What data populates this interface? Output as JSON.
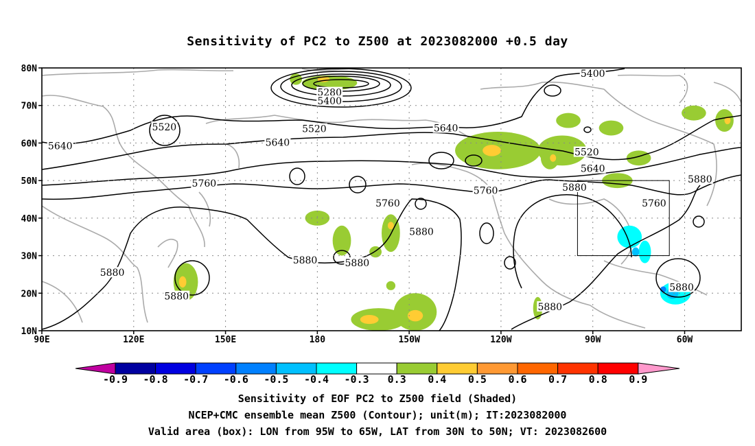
{
  "title": "Sensitivity of PC2 to Z500 at 2023082000 +0.5 day",
  "axes": {
    "lat_labels": [
      "80N",
      "70N",
      "60N",
      "50N",
      "40N",
      "30N",
      "20N",
      "10N"
    ],
    "lon_labels": [
      "90E",
      "120E",
      "150E",
      "180",
      "150W",
      "120W",
      "90W",
      "60W"
    ]
  },
  "contour_labels": [
    {
      "text": "5280",
      "lon": 184,
      "lat": 73.5
    },
    {
      "text": "5400",
      "lon": 184,
      "lat": 71.2
    },
    {
      "text": "5400",
      "lon": 270,
      "lat": 78.5
    },
    {
      "text": "5520",
      "lon": 130,
      "lat": 64.3
    },
    {
      "text": "5520",
      "lon": 179,
      "lat": 63.8
    },
    {
      "text": "5520",
      "lon": 268,
      "lat": 57.6
    },
    {
      "text": "5640",
      "lon": 96,
      "lat": 59.3
    },
    {
      "text": "5640",
      "lon": 167,
      "lat": 60.2
    },
    {
      "text": "5640",
      "lon": 222,
      "lat": 64
    },
    {
      "text": "5640",
      "lon": 270,
      "lat": 53.2
    },
    {
      "text": "5760",
      "lon": 143,
      "lat": 49.3
    },
    {
      "text": "5760",
      "lon": 203,
      "lat": 44
    },
    {
      "text": "5760",
      "lon": 235,
      "lat": 47.4
    },
    {
      "text": "5760",
      "lon": 290,
      "lat": 44
    },
    {
      "text": "5880",
      "lon": 264,
      "lat": 48.2
    },
    {
      "text": "5880",
      "lon": 305,
      "lat": 50.4
    },
    {
      "text": "5880",
      "lon": 214,
      "lat": 36.4
    },
    {
      "text": "5880",
      "lon": 176,
      "lat": 28.8
    },
    {
      "text": "5880",
      "lon": 193,
      "lat": 28.1
    },
    {
      "text": "5880",
      "lon": 113,
      "lat": 25.5
    },
    {
      "text": "5880",
      "lon": 134,
      "lat": 19.2
    },
    {
      "text": "5880",
      "lon": 299,
      "lat": 21.6
    },
    {
      "text": "5880",
      "lon": 256,
      "lat": 16.4
    }
  ],
  "colorbar": {
    "labels": [
      "-0.9",
      "-0.8",
      "-0.7",
      "-0.6",
      "-0.5",
      "-0.4",
      "-0.3",
      "0.3",
      "0.4",
      "0.5",
      "0.6",
      "0.7",
      "0.8",
      "0.9"
    ],
    "colors": [
      "#0000a0",
      "#0000e0",
      "#0040ff",
      "#0080ff",
      "#00c0ff",
      "#00ffff",
      "#ffffff",
      "#99cc33",
      "#ffcc33",
      "#ff9933",
      "#ff6600",
      "#ff3300",
      "#ff0000"
    ],
    "left_tip_color": "#c000a0",
    "right_tip_color": "#ff99cc"
  },
  "footer": [
    "Sensitivity of EOF PC2 to Z500 field (Shaded)",
    "NCEP+CMC ensemble mean Z500 (Contour); unit(m); IT:2023082000",
    "Valid area (box): LON from 95W to 65W, LAT from 30N to 50N; VT: 2023082600"
  ],
  "valid_box": {
    "lon_min": 265,
    "lon_max": 295,
    "lat_min": 30,
    "lat_max": 50
  },
  "shading": [
    {
      "lon": 200,
      "lat": 13,
      "rx": 9,
      "ry": 3,
      "value": 0.35
    },
    {
      "lon": 197,
      "lat": 13,
      "rx": 3,
      "ry": 1.2,
      "value": 0.45
    },
    {
      "lon": 212,
      "lat": 15,
      "rx": 7,
      "ry": 5,
      "value": 0.35
    },
    {
      "lon": 212,
      "lat": 14,
      "rx": 2.5,
      "ry": 1.5,
      "value": 0.45
    },
    {
      "lon": 204,
      "lat": 36,
      "rx": 3,
      "ry": 5,
      "value": 0.35
    },
    {
      "lon": 204,
      "lat": 38,
      "rx": 1,
      "ry": 1,
      "value": 0.45
    },
    {
      "lon": 180,
      "lat": 40,
      "rx": 4,
      "ry": 2,
      "value": 0.35
    },
    {
      "lon": 188,
      "lat": 34,
      "rx": 3,
      "ry": 4,
      "value": 0.35
    },
    {
      "lon": 199,
      "lat": 31,
      "rx": 2,
      "ry": 1.5,
      "value": 0.35
    },
    {
      "lon": 137,
      "lat": 23,
      "rx": 4,
      "ry": 5,
      "value": 0.35
    },
    {
      "lon": 136,
      "lat": 23,
      "rx": 1.2,
      "ry": 1.5,
      "value": 0.45
    },
    {
      "lon": 184,
      "lat": 76,
      "rx": 9,
      "ry": 2,
      "value": 0.35
    },
    {
      "lon": 182,
      "lat": 77,
      "rx": 2,
      "ry": 0.8,
      "value": 0.45
    },
    {
      "lon": 173,
      "lat": 77,
      "rx": 2,
      "ry": 1.5,
      "value": 0.35
    },
    {
      "lon": 239,
      "lat": 58,
      "rx": 14,
      "ry": 5,
      "value": 0.35
    },
    {
      "lon": 237,
      "lat": 58,
      "rx": 3,
      "ry": 1.5,
      "value": 0.45
    },
    {
      "lon": 260,
      "lat": 58,
      "rx": 8,
      "ry": 4,
      "value": 0.35
    },
    {
      "lon": 262,
      "lat": 66,
      "rx": 4,
      "ry": 2,
      "value": 0.35
    },
    {
      "lon": 256,
      "lat": 56,
      "rx": 3,
      "ry": 3,
      "value": 0.35
    },
    {
      "lon": 257,
      "lat": 56,
      "rx": 1,
      "ry": 1,
      "value": 0.45
    },
    {
      "lon": 278,
      "lat": 50,
      "rx": 5,
      "ry": 2,
      "value": 0.35
    },
    {
      "lon": 276,
      "lat": 64,
      "rx": 4,
      "ry": 2,
      "value": 0.35
    },
    {
      "lon": 285,
      "lat": 56,
      "rx": 4,
      "ry": 2,
      "value": 0.35
    },
    {
      "lon": 303,
      "lat": 68,
      "rx": 4,
      "ry": 2,
      "value": 0.35
    },
    {
      "lon": 313,
      "lat": 66,
      "rx": 3,
      "ry": 3,
      "value": 0.35
    },
    {
      "lon": 314,
      "lat": 66,
      "rx": 1,
      "ry": 1,
      "value": 0.45
    },
    {
      "lon": 282,
      "lat": 35,
      "rx": 4,
      "ry": 3,
      "value": -0.4
    },
    {
      "lon": 287,
      "lat": 31,
      "rx": 2,
      "ry": 3,
      "value": -0.4
    },
    {
      "lon": 284,
      "lat": 31,
      "rx": 1.2,
      "ry": 1.2,
      "value": -0.5
    },
    {
      "lon": 297,
      "lat": 20,
      "rx": 5,
      "ry": 3,
      "value": -0.4
    },
    {
      "lon": 296,
      "lat": 20,
      "rx": 2,
      "ry": 1.5,
      "value": -0.5
    },
    {
      "lon": 293,
      "lat": 21,
      "rx": 1,
      "ry": 0.8,
      "value": -0.6
    },
    {
      "lon": 252,
      "lat": 16,
      "rx": 1.5,
      "ry": 3,
      "value": 0.35
    },
    {
      "lon": 204,
      "lat": 22,
      "rx": 1.5,
      "ry": 1.2,
      "value": 0.35
    }
  ]
}
